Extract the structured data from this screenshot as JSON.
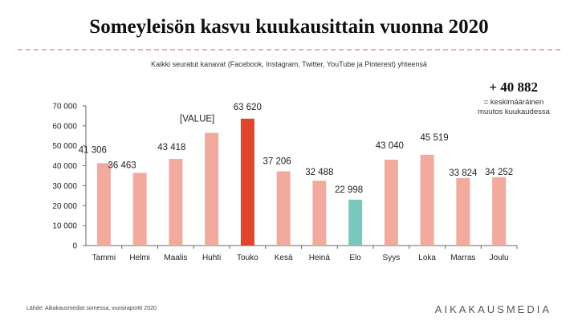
{
  "header": {
    "title": "Someyleisön kasvu kuukausittain vuonna 2020",
    "subtitle": "Kaikki seuratut kanavat (Facebook, Instagram, Twitter, YouTube ja Pinterest) yhteensä"
  },
  "growth": {
    "value": "+ 40 882",
    "note": "= keskimääräinen muutos kuukaudessa"
  },
  "footer": {
    "source": "Lähde: Aikakausmediat somessa, vuosiraportti 2020",
    "brand": "AIKAKAUSMEDIA"
  },
  "colors": {
    "normal": "#f2aa9e",
    "peak": "#e0452e",
    "low": "#7cc7bd",
    "axis": "#666666"
  },
  "chart_data": {
    "type": "bar",
    "categories": [
      "Tammi",
      "Helmi",
      "Maalis",
      "Huhti",
      "Touko",
      "Kesä",
      "Heinä",
      "Elo",
      "Syys",
      "Loka",
      "Marras",
      "Joulu"
    ],
    "values": [
      41306,
      36463,
      43418,
      56500,
      63620,
      37206,
      32488,
      22998,
      43040,
      45519,
      33824,
      34252
    ],
    "data_labels": [
      "41 306",
      "36 463",
      "43 418",
      "[VALUE]",
      "63 620",
      "37 206",
      "32 488",
      "22 998",
      "43 040",
      "45 519",
      "33 824",
      "34 252"
    ],
    "highlight": {
      "peak_index": 4,
      "low_index": 7
    },
    "ylim": [
      0,
      70000
    ],
    "y_ticks": [
      0,
      10000,
      20000,
      30000,
      40000,
      50000,
      60000,
      70000
    ],
    "y_tick_labels": [
      "0",
      "10 000",
      "20 000",
      "30 000",
      "40 000",
      "50 000",
      "60 000",
      "70 000"
    ],
    "grid": false,
    "legend": "none"
  }
}
